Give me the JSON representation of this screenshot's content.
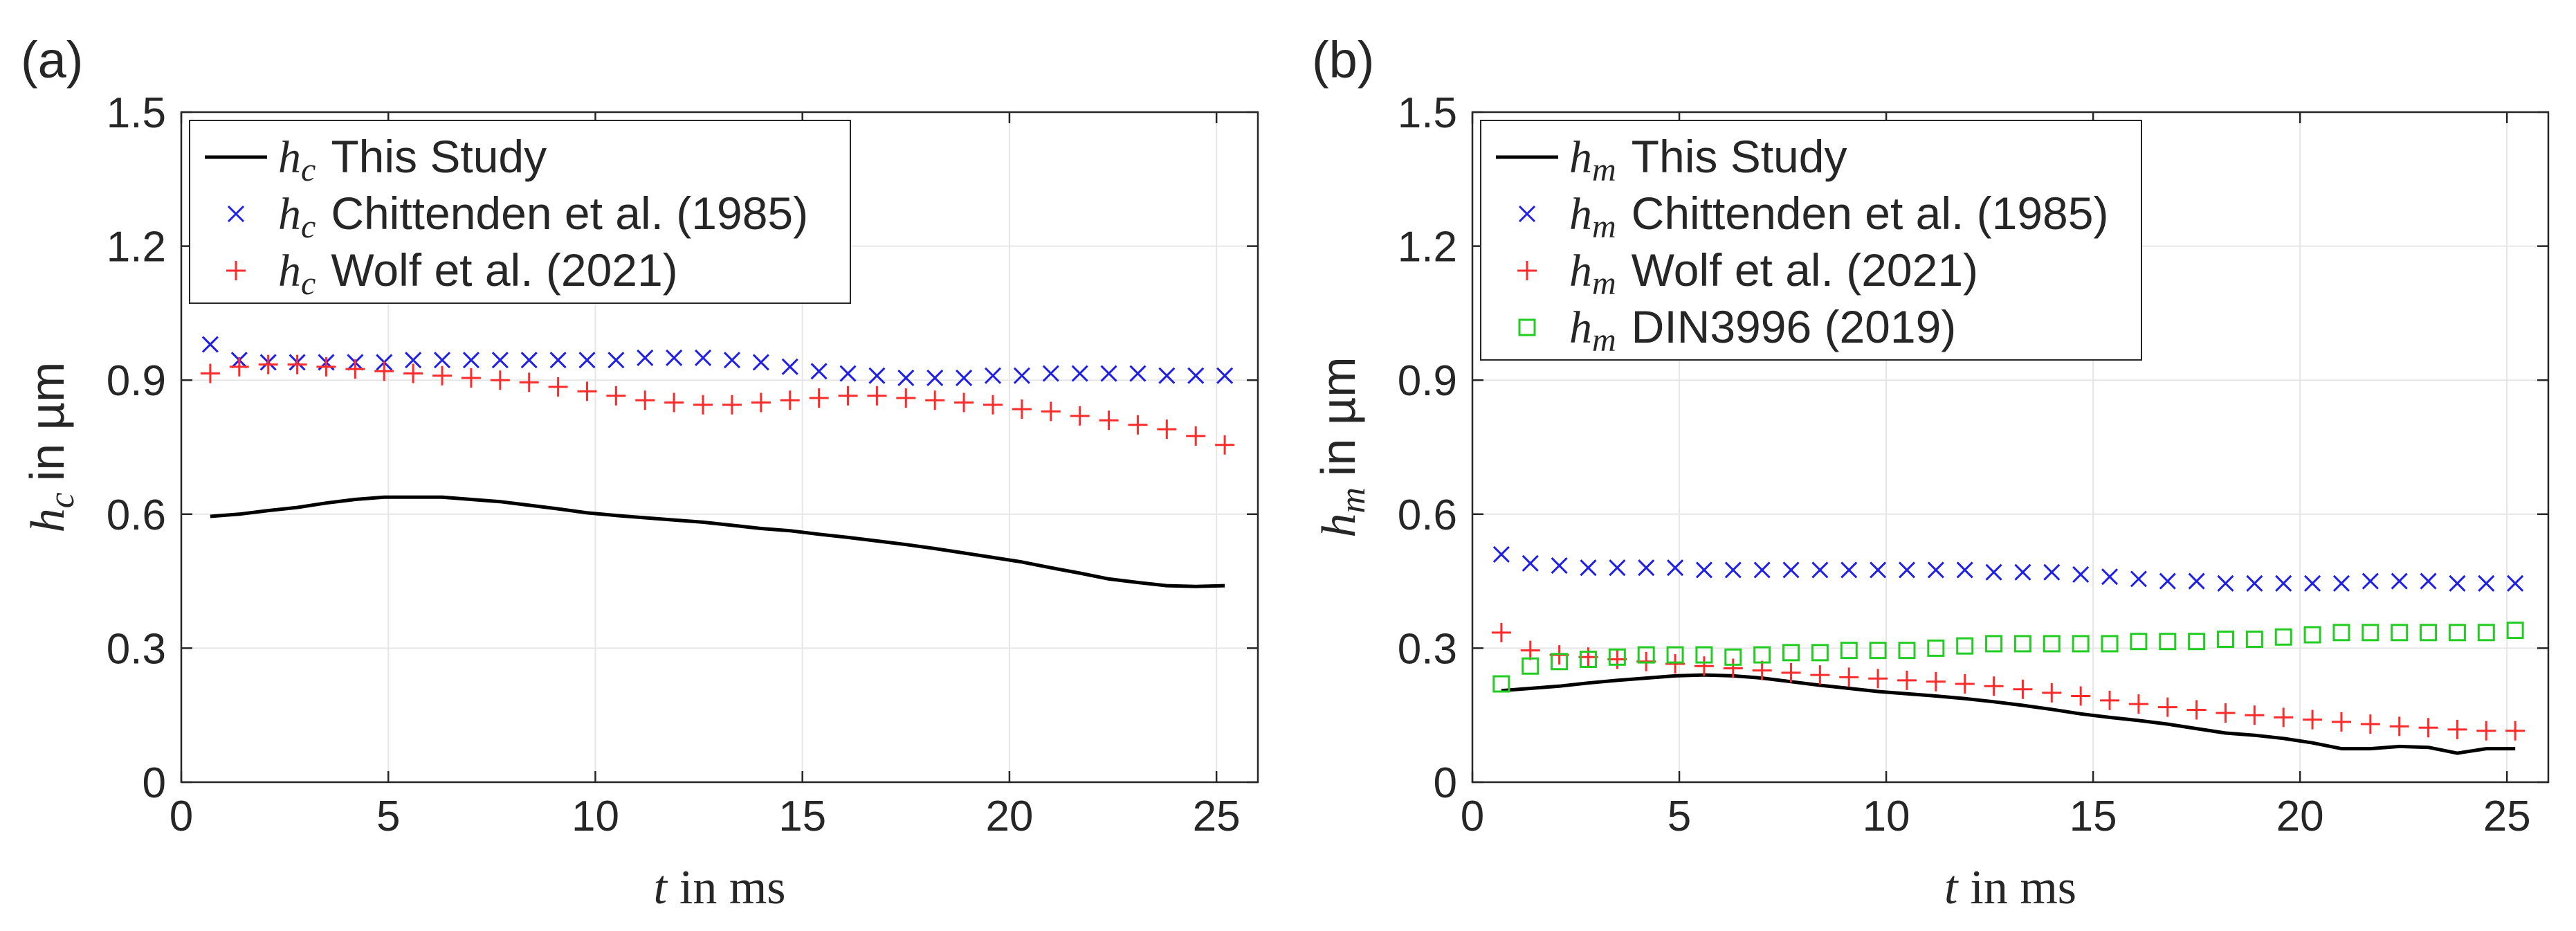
{
  "chart_data": [
    {
      "type": "line",
      "panel_label": "(a)",
      "xlabel": {
        "symbol": "t",
        "unit": "in ms"
      },
      "ylabel": {
        "symbol": "h",
        "sub": "c",
        "unit": "in µm"
      },
      "xlim": [
        0,
        26
      ],
      "ylim": [
        0,
        1.5
      ],
      "xticks": [
        "0",
        "5",
        "10",
        "15",
        "20",
        "25"
      ],
      "yticks": [
        "0",
        "0.3",
        "0.6",
        "0.9",
        "1.2",
        "1.5"
      ],
      "grid": true,
      "legend_position": "top-left",
      "series": [
        {
          "name": "This Study",
          "symbol": "h",
          "sub": "c",
          "marker": "line",
          "color": "#000000",
          "x": [
            0.7,
            1.4,
            2.1,
            2.8,
            3.5,
            4.2,
            4.9,
            5.6,
            6.3,
            7.0,
            7.7,
            8.4,
            9.1,
            9.8,
            10.5,
            11.2,
            11.9,
            12.6,
            13.3,
            14.0,
            14.7,
            15.4,
            16.1,
            16.8,
            17.5,
            18.2,
            18.9,
            19.6,
            20.3,
            21.0,
            21.7,
            22.4,
            23.1,
            23.8,
            24.5,
            25.2
          ],
          "y": [
            0.595,
            0.6,
            0.608,
            0.615,
            0.625,
            0.633,
            0.638,
            0.638,
            0.638,
            0.633,
            0.628,
            0.62,
            0.612,
            0.603,
            0.597,
            0.592,
            0.587,
            0.582,
            0.575,
            0.568,
            0.563,
            0.555,
            0.548,
            0.54,
            0.532,
            0.523,
            0.513,
            0.503,
            0.493,
            0.48,
            0.468,
            0.455,
            0.447,
            0.44,
            0.438,
            0.44
          ]
        },
        {
          "name": "Chittenden et al. (1985)",
          "symbol": "h",
          "sub": "c",
          "marker": "x",
          "color": "#1f1fe6",
          "x": [
            0.7,
            1.4,
            2.1,
            2.8,
            3.5,
            4.2,
            4.9,
            5.6,
            6.3,
            7.0,
            7.7,
            8.4,
            9.1,
            9.8,
            10.5,
            11.2,
            11.9,
            12.6,
            13.3,
            14.0,
            14.7,
            15.4,
            16.1,
            16.8,
            17.5,
            18.2,
            18.9,
            19.6,
            20.3,
            21.0,
            21.7,
            22.4,
            23.1,
            23.8,
            24.5,
            25.2
          ],
          "y": [
            0.98,
            0.945,
            0.94,
            0.94,
            0.94,
            0.94,
            0.94,
            0.945,
            0.945,
            0.945,
            0.945,
            0.945,
            0.945,
            0.945,
            0.945,
            0.95,
            0.95,
            0.95,
            0.945,
            0.94,
            0.93,
            0.92,
            0.915,
            0.91,
            0.905,
            0.905,
            0.905,
            0.91,
            0.91,
            0.915,
            0.915,
            0.915,
            0.915,
            0.91,
            0.91,
            0.91
          ]
        },
        {
          "name": "Wolf et al. (2021)",
          "symbol": "h",
          "sub": "c",
          "marker": "+",
          "color": "#ff2a2a",
          "x": [
            0.7,
            1.4,
            2.1,
            2.8,
            3.5,
            4.2,
            4.9,
            5.6,
            6.3,
            7.0,
            7.7,
            8.4,
            9.1,
            9.8,
            10.5,
            11.2,
            11.9,
            12.6,
            13.3,
            14.0,
            14.7,
            15.4,
            16.1,
            16.8,
            17.5,
            18.2,
            18.9,
            19.6,
            20.3,
            21.0,
            21.7,
            22.4,
            23.1,
            23.8,
            24.5,
            25.2
          ],
          "y": [
            0.915,
            0.93,
            0.935,
            0.935,
            0.93,
            0.925,
            0.92,
            0.915,
            0.91,
            0.905,
            0.9,
            0.895,
            0.885,
            0.875,
            0.865,
            0.855,
            0.85,
            0.845,
            0.845,
            0.85,
            0.855,
            0.86,
            0.865,
            0.865,
            0.86,
            0.855,
            0.85,
            0.845,
            0.835,
            0.83,
            0.82,
            0.81,
            0.8,
            0.79,
            0.775,
            0.755
          ]
        }
      ]
    },
    {
      "type": "line",
      "panel_label": "(b)",
      "xlabel": {
        "symbol": "t",
        "unit": "in ms"
      },
      "ylabel": {
        "symbol": "h",
        "sub": "m",
        "unit": "in µm"
      },
      "xlim": [
        0,
        26
      ],
      "ylim": [
        0,
        1.5
      ],
      "xticks": [
        "0",
        "5",
        "10",
        "15",
        "20",
        "25"
      ],
      "yticks": [
        "0",
        "0.3",
        "0.6",
        "0.9",
        "1.2",
        "1.5"
      ],
      "grid": true,
      "legend_position": "top-left",
      "series": [
        {
          "name": "This Study",
          "symbol": "h",
          "sub": "m",
          "marker": "line",
          "color": "#000000",
          "x": [
            0.7,
            1.4,
            2.1,
            2.8,
            3.5,
            4.2,
            4.9,
            5.6,
            6.3,
            7.0,
            7.7,
            8.4,
            9.1,
            9.8,
            10.5,
            11.2,
            11.9,
            12.6,
            13.3,
            14.0,
            14.7,
            15.4,
            16.1,
            16.8,
            17.5,
            18.2,
            18.9,
            19.6,
            20.3,
            21.0,
            21.7,
            22.4,
            23.1,
            23.8,
            24.5,
            25.2
          ],
          "y": [
            0.205,
            0.21,
            0.215,
            0.222,
            0.228,
            0.233,
            0.238,
            0.24,
            0.238,
            0.233,
            0.225,
            0.217,
            0.21,
            0.203,
            0.198,
            0.193,
            0.187,
            0.18,
            0.172,
            0.163,
            0.153,
            0.145,
            0.138,
            0.13,
            0.12,
            0.11,
            0.105,
            0.098,
            0.088,
            0.075,
            0.075,
            0.08,
            0.078,
            0.065,
            0.075,
            0.075
          ]
        },
        {
          "name": "Chittenden et al. (1985)",
          "symbol": "h",
          "sub": "m",
          "marker": "x",
          "color": "#1f1fe6",
          "x": [
            0.7,
            1.4,
            2.1,
            2.8,
            3.5,
            4.2,
            4.9,
            5.6,
            6.3,
            7.0,
            7.7,
            8.4,
            9.1,
            9.8,
            10.5,
            11.2,
            11.9,
            12.6,
            13.3,
            14.0,
            14.7,
            15.4,
            16.1,
            16.8,
            17.5,
            18.2,
            18.9,
            19.6,
            20.3,
            21.0,
            21.7,
            22.4,
            23.1,
            23.8,
            24.5,
            25.2
          ],
          "y": [
            0.51,
            0.49,
            0.485,
            0.48,
            0.48,
            0.48,
            0.48,
            0.475,
            0.475,
            0.475,
            0.475,
            0.475,
            0.475,
            0.475,
            0.475,
            0.475,
            0.475,
            0.47,
            0.47,
            0.47,
            0.465,
            0.46,
            0.455,
            0.45,
            0.45,
            0.445,
            0.445,
            0.445,
            0.445,
            0.445,
            0.45,
            0.45,
            0.45,
            0.445,
            0.445,
            0.445
          ]
        },
        {
          "name": "Wolf et al. (2021)",
          "symbol": "h",
          "sub": "m",
          "marker": "+",
          "color": "#ff2a2a",
          "x": [
            0.7,
            1.4,
            2.1,
            2.8,
            3.5,
            4.2,
            4.9,
            5.6,
            6.3,
            7.0,
            7.7,
            8.4,
            9.1,
            9.8,
            10.5,
            11.2,
            11.9,
            12.6,
            13.3,
            14.0,
            14.7,
            15.4,
            16.1,
            16.8,
            17.5,
            18.2,
            18.9,
            19.6,
            20.3,
            21.0,
            21.7,
            22.4,
            23.1,
            23.8,
            24.5,
            25.2
          ],
          "y": [
            0.335,
            0.295,
            0.285,
            0.28,
            0.275,
            0.27,
            0.265,
            0.26,
            0.255,
            0.25,
            0.245,
            0.24,
            0.235,
            0.232,
            0.228,
            0.225,
            0.22,
            0.215,
            0.208,
            0.2,
            0.193,
            0.183,
            0.175,
            0.168,
            0.162,
            0.155,
            0.15,
            0.145,
            0.14,
            0.135,
            0.13,
            0.125,
            0.122,
            0.118,
            0.115,
            0.115
          ]
        },
        {
          "name": "DIN3996 (2019)",
          "symbol": "h",
          "sub": "m",
          "marker": "square",
          "color": "#22cc22",
          "x": [
            0.7,
            1.4,
            2.1,
            2.8,
            3.5,
            4.2,
            4.9,
            5.6,
            6.3,
            7.0,
            7.7,
            8.4,
            9.1,
            9.8,
            10.5,
            11.2,
            11.9,
            12.6,
            13.3,
            14.0,
            14.7,
            15.4,
            16.1,
            16.8,
            17.5,
            18.2,
            18.9,
            19.6,
            20.3,
            21.0,
            21.7,
            22.4,
            23.1,
            23.8,
            24.5,
            25.2
          ],
          "y": [
            0.22,
            0.26,
            0.27,
            0.275,
            0.28,
            0.285,
            0.285,
            0.285,
            0.28,
            0.285,
            0.29,
            0.29,
            0.295,
            0.295,
            0.295,
            0.3,
            0.305,
            0.31,
            0.31,
            0.31,
            0.31,
            0.31,
            0.315,
            0.315,
            0.315,
            0.32,
            0.32,
            0.325,
            0.33,
            0.335,
            0.335,
            0.335,
            0.335,
            0.335,
            0.335,
            0.34
          ]
        }
      ]
    }
  ]
}
